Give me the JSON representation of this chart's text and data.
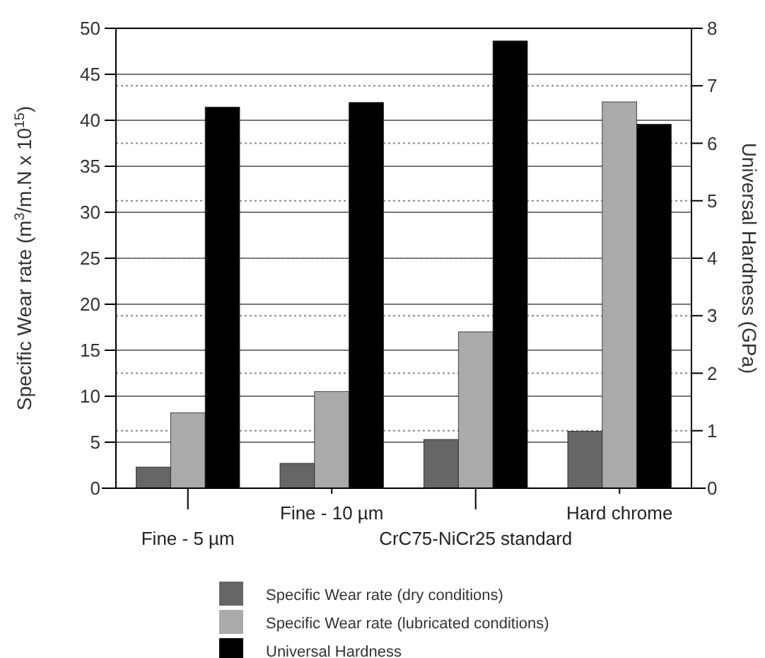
{
  "chart_data": {
    "type": "bar",
    "categories": [
      "Fine - 5 µm",
      "Fine - 10 µm",
      "CrC75-NiCr25 standard",
      "Hard chrome"
    ],
    "ylabel": "Specific Wear rate (m$^{3}$/m.N x 10$^{15}$)",
    "y2label": "Universal Hardness (GPa)",
    "series": [
      {
        "name": "Specific Wear rate (dry conditions)",
        "color": "#666666",
        "values": [
          2.3,
          2.7,
          5.3,
          6.2
        ]
      },
      {
        "name": "Specific Wear rate (lubricated conditions)",
        "color": "#aaaaaa",
        "values": [
          8.2,
          10.5,
          17,
          42
        ]
      },
      {
        "name": "Universal Hardness",
        "color": "#000000",
        "values": [
          6.63,
          6.71,
          7.78,
          6.33
        ],
        "axis": "y2"
      }
    ],
    "ylim": [
      0,
      50
    ],
    "yticks": [
      0,
      5,
      10,
      15,
      20,
      25,
      30,
      35,
      40,
      45,
      50
    ],
    "y2lim": [
      0,
      8
    ],
    "y2ticks": [
      0,
      1,
      2,
      3,
      4,
      5,
      6,
      7,
      8
    ],
    "grid": true,
    "legend": "bottom"
  }
}
